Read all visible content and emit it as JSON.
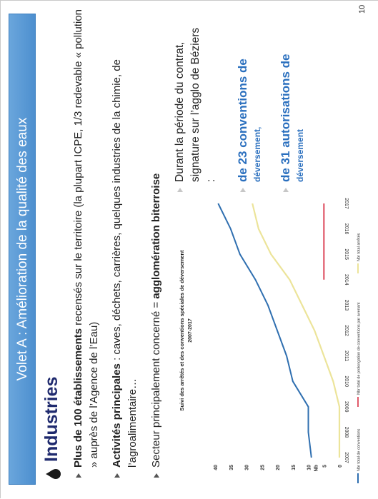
{
  "slide": {
    "title": "Volet A : Amélioration de la qualité des eaux",
    "heading": "Industries",
    "bullets": [
      {
        "pre": "Plus de 100 établissements",
        "post": " recensés sur le territoire (la plupart ICPE, 1/3 redevable « pollution » auprès de l’Agence de l’Eau)"
      },
      {
        "pre": "Activités principales",
        "post": " : caves, déchets, carrières, quelques industries de la chimie, de l’agroalimentaire…"
      },
      {
        "pre": "Secteur principalement concerné = ",
        "post": "agglomération biterroise"
      }
    ],
    "side": {
      "intro": "Durant la période du contrat, signature sur l’agglo de Béziers :",
      "conventions_big": "de 23 conventions de",
      "conventions_small": "déversement,",
      "autorisations_big": "de 31 autorisations de",
      "autorisations_small": "déversement"
    },
    "page_number": "10"
  },
  "chart_data": {
    "type": "line",
    "title": "Suivi des arrêtés et des conventions spéciales de déversement",
    "subtitle": "2007-2017",
    "xlabel": "",
    "ylabel": "Nb",
    "x": [
      "2007",
      "2008",
      "2009",
      "2010",
      "2011",
      "2012",
      "2013",
      "2014",
      "2015",
      "2016",
      "2017"
    ],
    "yticks": [
      0,
      5,
      10,
      15,
      20,
      25,
      30,
      35,
      40
    ],
    "ylim": [
      0,
      40
    ],
    "grid": false,
    "legend_position": "bottom",
    "series": [
      {
        "name": "Nbr total de conventions",
        "color": "#2f6fb0",
        "values": [
          9,
          10,
          10,
          15,
          17,
          20,
          23,
          27,
          32,
          35,
          39
        ]
      },
      {
        "name": "Nbr total de prolongation de conventions par avenant",
        "color": "#e05a6a",
        "values": [
          null,
          null,
          null,
          null,
          null,
          null,
          null,
          5,
          5,
          5,
          5
        ]
      },
      {
        "name": "Nbr total arrêtés",
        "color": "#ece49a",
        "values": [
          0,
          0,
          0,
          2,
          5,
          8,
          12,
          16,
          22,
          26,
          28
        ]
      }
    ]
  }
}
